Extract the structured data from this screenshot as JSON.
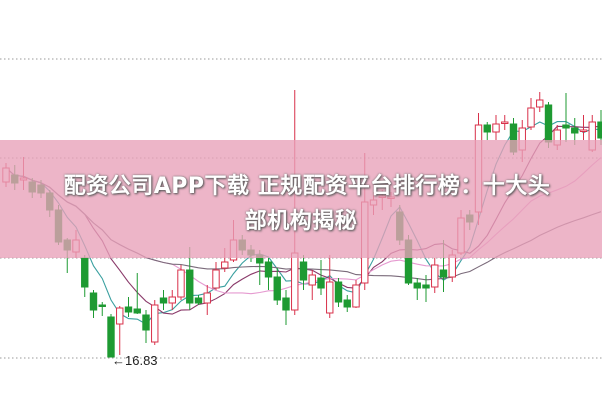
{
  "title_line1": "配资公司APP下载 正规配资平台排行榜：十大头",
  "title_line2": "部机构揭秘",
  "colors": {
    "up": "#d8304a",
    "down": "#1e9a32",
    "grid": "#9a9a9a",
    "banner": "#e8a0b9",
    "ma_lines": [
      "#3aa0a0",
      "#8a3a6a",
      "#e59ad0",
      "#7a6a7a"
    ]
  },
  "chart_data": {
    "type": "candlestick",
    "low_annotation": "16.83",
    "grid": true,
    "candles_ohlc": [
      [
        20.33,
        20.71,
        20.23,
        20.61
      ],
      [
        20.47,
        20.67,
        20.17,
        20.31
      ],
      [
        20.37,
        20.83,
        20.17,
        20.41
      ],
      [
        20.33,
        20.41,
        20.01,
        20.13
      ],
      [
        20.27,
        20.37,
        20.01,
        20.11
      ],
      [
        20.11,
        20.17,
        19.63,
        19.77
      ],
      [
        19.77,
        19.87,
        19.07,
        19.13
      ],
      [
        19.17,
        19.21,
        18.51,
        18.97
      ],
      [
        18.93,
        19.37,
        18.81,
        19.17
      ],
      [
        18.81,
        18.87,
        18.03,
        18.23
      ],
      [
        18.11,
        18.17,
        17.61,
        17.77
      ],
      [
        17.87,
        17.93,
        17.65,
        17.85
      ],
      [
        17.63,
        17.69,
        16.83,
        16.83
      ],
      [
        17.49,
        17.85,
        16.87,
        17.81
      ],
      [
        17.83,
        18.03,
        17.63,
        17.73
      ],
      [
        17.79,
        18.51,
        17.69,
        17.71
      ],
      [
        17.67,
        17.77,
        17.11,
        17.37
      ],
      [
        17.13,
        17.97,
        17.07,
        17.87
      ],
      [
        18.01,
        18.17,
        17.77,
        17.91
      ],
      [
        17.91,
        18.17,
        17.77,
        18.03
      ],
      [
        18.03,
        18.67,
        17.97,
        18.57
      ],
      [
        18.57,
        19.03,
        17.77,
        17.91
      ],
      [
        18.01,
        18.07,
        17.87,
        17.91
      ],
      [
        17.91,
        18.27,
        17.67,
        18.11
      ],
      [
        18.21,
        18.73,
        18.17,
        18.57
      ],
      [
        18.61,
        19.01,
        18.53,
        18.73
      ],
      [
        18.77,
        19.57,
        18.73,
        19.17
      ],
      [
        19.17,
        19.27,
        18.87,
        18.97
      ],
      [
        18.97,
        19.07,
        18.73,
        18.87
      ],
      [
        18.87,
        18.97,
        18.27,
        18.71
      ],
      [
        18.73,
        18.81,
        18.17,
        18.43
      ],
      [
        18.43,
        18.61,
        17.87,
        17.97
      ],
      [
        18.01,
        18.17,
        17.47,
        17.77
      ],
      [
        17.77,
        22.17,
        17.67,
        18.91
      ],
      [
        18.73,
        18.87,
        18.17,
        18.37
      ],
      [
        18.27,
        18.57,
        17.97,
        18.47
      ],
      [
        18.41,
        18.77,
        18.07,
        18.21
      ],
      [
        17.71,
        18.87,
        17.61,
        18.33
      ],
      [
        18.33,
        18.41,
        17.83,
        17.93
      ],
      [
        17.97,
        18.07,
        17.73,
        17.83
      ],
      [
        17.83,
        18.37,
        17.81,
        18.27
      ],
      [
        18.31,
        20.91,
        18.17,
        19.93
      ],
      [
        19.87,
        20.13,
        19.67,
        19.97
      ],
      [
        20.05,
        20.17,
        19.77,
        20.05
      ],
      [
        20.03,
        20.13,
        19.83,
        20.03
      ],
      [
        19.73,
        19.87,
        19.07,
        19.17
      ],
      [
        19.17,
        19.27,
        18.27,
        18.31
      ],
      [
        18.31,
        18.41,
        17.97,
        18.21
      ],
      [
        18.27,
        18.47,
        17.93,
        18.21
      ],
      [
        18.23,
        18.81,
        18.11,
        18.67
      ],
      [
        18.57,
        19.17,
        18.13,
        18.43
      ],
      [
        18.43,
        18.97,
        18.33,
        18.87
      ],
      [
        18.91,
        19.77,
        18.87,
        19.61
      ],
      [
        19.67,
        19.77,
        19.37,
        19.53
      ],
      [
        19.73,
        21.71,
        19.47,
        21.47
      ],
      [
        21.47,
        21.53,
        21.17,
        21.33
      ],
      [
        21.33,
        21.67,
        21.17,
        21.49
      ],
      [
        21.53,
        21.67,
        21.37,
        21.53
      ],
      [
        21.49,
        21.61,
        20.87,
        20.93
      ],
      [
        20.97,
        21.57,
        20.73,
        21.41
      ],
      [
        21.43,
        22.01,
        21.37,
        21.81
      ],
      [
        21.83,
        22.13,
        21.73,
        21.97
      ],
      [
        21.87,
        21.93,
        21.01,
        21.13
      ],
      [
        21.07,
        21.47,
        20.97,
        21.37
      ],
      [
        21.47,
        22.11,
        21.13,
        21.41
      ],
      [
        21.41,
        21.61,
        21.07,
        21.31
      ],
      [
        21.37,
        21.67,
        21.17,
        21.37
      ],
      [
        20.97,
        21.67,
        20.93,
        21.53
      ],
      [
        21.53,
        21.77,
        21.07,
        21.21
      ]
    ]
  }
}
